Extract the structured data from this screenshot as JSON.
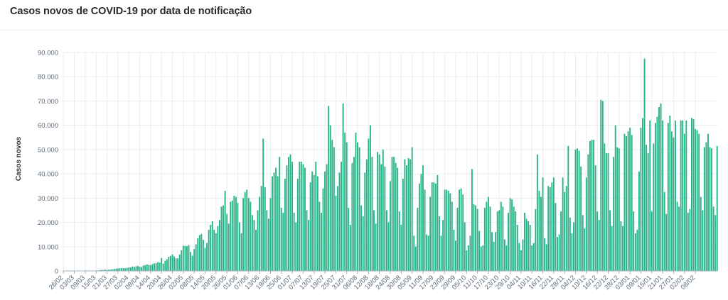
{
  "page": {
    "title": "Casos novos de COVID-19 por data de notificação"
  },
  "colors": {
    "bar": "#2bb38a",
    "grid": "#e8edf2",
    "axis": "#9fb0bf"
  },
  "chart_data": {
    "type": "bar",
    "title": "Casos novos de COVID-19 por data de notificação",
    "xlabel": "",
    "ylabel": "Casos novos",
    "ylim": [
      0,
      90000
    ],
    "yticks": [
      "0",
      "10.000",
      "20.000",
      "30.000",
      "40.000",
      "50.000",
      "60.000",
      "70.000",
      "80.000",
      "90.000"
    ],
    "grid": true,
    "start_date": "26/02",
    "xtick_labels": [
      "26/02",
      "03/03",
      "09/03",
      "15/03",
      "21/03",
      "27/03",
      "02/04",
      "08/04",
      "14/04",
      "20/04",
      "26/04",
      "02/05",
      "08/05",
      "14/05",
      "20/05",
      "26/05",
      "01/06",
      "07/06",
      "13/06",
      "19/06",
      "25/06",
      "01/07",
      "07/07",
      "13/07",
      "19/07",
      "25/07",
      "31/07",
      "06/08",
      "12/08",
      "18/08",
      "24/08",
      "30/08",
      "05/09",
      "11/09",
      "17/09",
      "23/09",
      "29/09",
      "05/10",
      "11/10",
      "17/10",
      "23/10",
      "29/10",
      "04/11",
      "10/11",
      "16/11",
      "22/11",
      "28/11",
      "04/12",
      "10/12",
      "16/12",
      "22/12",
      "28/12",
      "03/01",
      "09/01",
      "15/01",
      "21/01",
      "27/01",
      "02/02",
      "08/02"
    ],
    "values": [
      0,
      0,
      0,
      0,
      0,
      0,
      0,
      0,
      0,
      0,
      0,
      0,
      0,
      0,
      100,
      100,
      100,
      100,
      200,
      200,
      300,
      400,
      400,
      500,
      400,
      500,
      600,
      700,
      800,
      900,
      1000,
      1100,
      1100,
      1200,
      1100,
      1300,
      1400,
      1500,
      1800,
      1700,
      1900,
      2000,
      1800,
      1600,
      2200,
      2400,
      2700,
      2500,
      2400,
      2800,
      3100,
      3200,
      3600,
      3400,
      5300,
      3000,
      4200,
      4800,
      5800,
      6200,
      6800,
      6000,
      5200,
      5200,
      6800,
      8500,
      10400,
      10300,
      10200,
      10600,
      7800,
      6200,
      9000,
      11000,
      13500,
      14800,
      15200,
      12800,
      9500,
      11500,
      17000,
      19000,
      20500,
      17000,
      15500,
      18500,
      21000,
      26500,
      27000,
      33000,
      23500,
      19500,
      28500,
      29000,
      31000,
      30500,
      28000,
      20000,
      15500,
      30000,
      32500,
      33500,
      30000,
      28500,
      23000,
      21000,
      17000,
      25000,
      30500,
      35000,
      54500,
      34500,
      25000,
      21500,
      30000,
      39000,
      40500,
      42500,
      39000,
      47000,
      26000,
      24000,
      38000,
      43500,
      47000,
      48000,
      45000,
      24000,
      20000,
      38000,
      45000,
      45000,
      44000,
      42500,
      25000,
      21000,
      36500,
      41000,
      39500,
      45000,
      39000,
      28500,
      24000,
      34000,
      41000,
      44000,
      68000,
      60000,
      54000,
      51000,
      31000,
      35000,
      40500,
      45000,
      69000,
      57000,
      53000,
      26000,
      19000,
      44500,
      47000,
      57000,
      53000,
      51000,
      27000,
      22500,
      40500,
      46000,
      54500,
      60000,
      47000,
      25000,
      19500,
      49000,
      48000,
      44000,
      50000,
      43000,
      25000,
      20000,
      37000,
      47000,
      47000,
      44500,
      42500,
      24500,
      19000,
      38000,
      46000,
      43500,
      46500,
      46000,
      51000,
      14500,
      10000,
      26000,
      36000,
      40000,
      43500,
      33500,
      15000,
      14500,
      30500,
      36500,
      36500,
      36000,
      39500,
      22500,
      14500,
      21000,
      33500,
      33500,
      33000,
      32000,
      28500,
      17000,
      12500,
      26000,
      33500,
      34000,
      31500,
      20000,
      8500,
      10500,
      14500,
      42000,
      27500,
      27000,
      25500,
      16500,
      10000,
      10500,
      26000,
      28500,
      30500,
      26500,
      16000,
      12000,
      16000,
      24500,
      25000,
      28500,
      26500,
      13000,
      10500,
      24000,
      30000,
      29500,
      26500,
      24500,
      19000,
      11500,
      8500,
      13000,
      24000,
      21500,
      20500,
      19000,
      10500,
      11500,
      25500,
      48000,
      33000,
      30500,
      38500,
      13500,
      11000,
      35000,
      34500,
      36500,
      38500,
      28000,
      14000,
      15000,
      24500,
      38500,
      32500,
      35000,
      51500,
      22000,
      15500,
      20000,
      50000,
      50500,
      49500,
      43000,
      23000,
      17500,
      38500,
      48000,
      53500,
      54000,
      54000,
      43500,
      24500,
      21000,
      70500,
      70000,
      52500,
      48500,
      48500,
      25000,
      18500,
      47000,
      60000,
      51000,
      50500,
      20500,
      18500,
      56500,
      55500,
      57500,
      59000,
      56000,
      24500,
      15500,
      17000,
      41000,
      59000,
      63000,
      87500,
      52000,
      48500,
      62000,
      24500,
      52500,
      61000,
      63500,
      67500,
      69000,
      62000,
      32500,
      23500,
      61000,
      64000,
      57500,
      55000,
      62000,
      28500,
      26500,
      62000,
      62000,
      56500,
      62000,
      24000,
      25500,
      63000,
      62500,
      58500,
      58000,
      56500,
      30500,
      25000,
      51000,
      53000,
      56500,
      51000,
      50500,
      26500,
      23000,
      51500
    ]
  }
}
